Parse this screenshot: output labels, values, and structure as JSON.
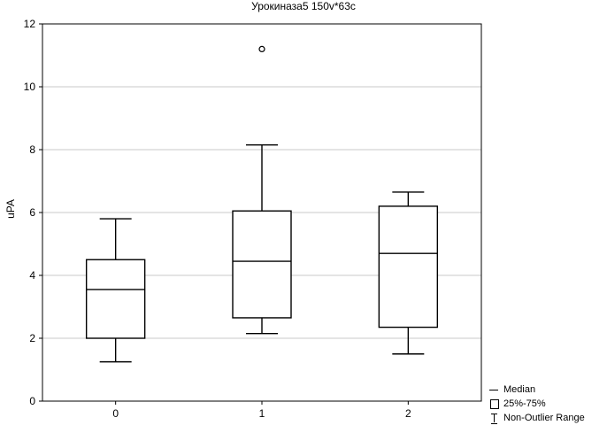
{
  "chart_data": {
    "type": "box",
    "title": "Урокиназа5 150v*63c",
    "ylabel": "uPA",
    "xlabel": "",
    "categories": [
      "0",
      "1",
      "2"
    ],
    "ylim": [
      0,
      12
    ],
    "yticks": [
      "0",
      "2",
      "4",
      "6",
      "8",
      "10",
      "12"
    ],
    "grid": true,
    "boxes": [
      {
        "category": "0",
        "whisker_low": 1.25,
        "q1": 2.0,
        "median": 3.55,
        "q3": 4.5,
        "whisker_high": 5.8,
        "outliers": []
      },
      {
        "category": "1",
        "whisker_low": 2.15,
        "q1": 2.65,
        "median": 4.45,
        "q3": 6.05,
        "whisker_high": 8.15,
        "outliers": [
          11.2
        ]
      },
      {
        "category": "2",
        "whisker_low": 1.5,
        "q1": 2.35,
        "median": 4.7,
        "q3": 6.2,
        "whisker_high": 6.65,
        "outliers": []
      }
    ],
    "legend": {
      "position": "bottom-right",
      "entries": [
        "Median",
        "25%-75%",
        "Non-Outlier Range"
      ]
    }
  }
}
